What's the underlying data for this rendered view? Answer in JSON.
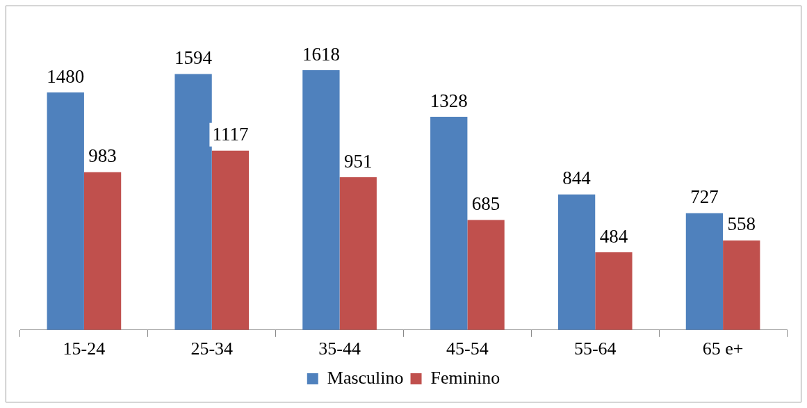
{
  "chart_data": {
    "type": "bar",
    "categories": [
      "15-24",
      "25-34",
      "35-44",
      "45-54",
      "55-64",
      "65 e+"
    ],
    "series": [
      {
        "name": "Masculino",
        "color": "#4f81bd",
        "values": [
          1480,
          1594,
          1618,
          1328,
          844,
          727
        ]
      },
      {
        "name": "Feminino",
        "color": "#c0504d",
        "values": [
          983,
          1117,
          951,
          685,
          484,
          558
        ]
      }
    ],
    "tick_labels": "x",
    "data_labels": true,
    "legend": "bottom",
    "grid": false
  }
}
